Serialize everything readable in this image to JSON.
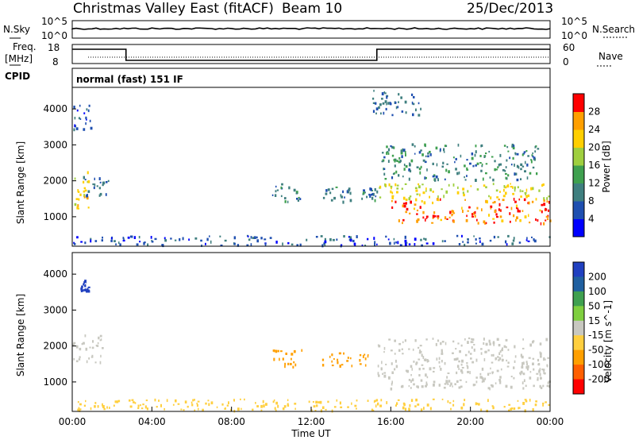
{
  "header": {
    "station": "Christmas Valley East (fitACF)",
    "beam": "Beam 10",
    "date": "25/Dec/2013"
  },
  "aux": {
    "nsky_label": "N.Sky",
    "nsearch_label": "N.Search",
    "nsky_ticks": [
      "10^5",
      "10^0"
    ],
    "nsearch_ticks": [
      "10^5",
      "10^0"
    ],
    "freq_label": "Freq.",
    "freq_unit": "[MHz]",
    "freq_ticks": [
      "18",
      "8"
    ],
    "nave_label": "Nave",
    "nave_ticks": [
      "60",
      "0"
    ],
    "cpid_label": "CPID",
    "cpid_value": "normal (fast) 151 IF"
  },
  "chart_data": [
    {
      "type": "heatmap",
      "name": "power",
      "ylabel": "Slant Range [km]",
      "xlabel": "",
      "xlim": [
        "00:00",
        "24:00"
      ],
      "ylim": [
        180,
        4600
      ],
      "yticks": [
        1000,
        2000,
        3000,
        4000
      ],
      "colorbar": {
        "label": "Power [dB]",
        "ticks": [
          4,
          8,
          12,
          16,
          20,
          24,
          28
        ],
        "range": [
          0,
          32
        ],
        "colors": [
          "#0000ff",
          "#1f4fb0",
          "#3f7f7f",
          "#3fa04f",
          "#9fcf3f",
          "#ffcf00",
          "#ff9f00",
          "#ff0000"
        ]
      },
      "regions": [
        {
          "t0": 0.0,
          "t1": 0.8,
          "r0": 1200,
          "r1": 2300,
          "level": 22
        },
        {
          "t0": 0.4,
          "t1": 1.8,
          "r0": 1500,
          "r1": 2100,
          "level": 8
        },
        {
          "t0": 0.0,
          "t1": 1.0,
          "r0": 3400,
          "r1": 4100,
          "level": 7
        },
        {
          "t0": 10.0,
          "t1": 11.5,
          "r0": 1400,
          "r1": 1900,
          "level": 9
        },
        {
          "t0": 12.5,
          "t1": 14.0,
          "r0": 1400,
          "r1": 1800,
          "level": 10
        },
        {
          "t0": 14.5,
          "t1": 15.3,
          "r0": 1400,
          "r1": 1800,
          "level": 9
        },
        {
          "t0": 15.5,
          "t1": 23.5,
          "r0": 2000,
          "r1": 3000,
          "level": 11
        },
        {
          "t0": 15.0,
          "t1": 17.5,
          "r0": 3800,
          "r1": 4500,
          "level": 8
        },
        {
          "t0": 15.3,
          "t1": 24.0,
          "r0": 1500,
          "r1": 1900,
          "level": 20
        },
        {
          "t0": 16.0,
          "t1": 24.0,
          "r0": 800,
          "r1": 1500,
          "level": 27
        },
        {
          "t0": 0.0,
          "t1": 24.0,
          "r0": 180,
          "r1": 450,
          "level": 6
        }
      ]
    },
    {
      "type": "heatmap",
      "name": "velocity",
      "ylabel": "Slant Range [km]",
      "xlabel": "Time UT",
      "xlim": [
        "00:00",
        "24:00"
      ],
      "ylim": [
        180,
        4600
      ],
      "yticks": [
        1000,
        2000,
        3000,
        4000
      ],
      "xticks": [
        "00:00",
        "04:00",
        "08:00",
        "12:00",
        "16:00",
        "20:00",
        "00:00"
      ],
      "colorbar": {
        "label": "Velocity [m s^-1]",
        "ticks": [
          200,
          100,
          50,
          15,
          -15,
          -50,
          -100,
          -200
        ],
        "colors": [
          "#2040c0",
          "#2060a0",
          "#3fa050",
          "#7fcf3f",
          "#c8c8c0",
          "#ffcf3f",
          "#ff9f00",
          "#ff5f00",
          "#ff0000"
        ]
      },
      "regions": [
        {
          "t0": 0.0,
          "t1": 1.5,
          "r0": 1500,
          "r1": 2300,
          "level": 0
        },
        {
          "t0": 0.4,
          "t1": 0.8,
          "r0": 3500,
          "r1": 3800,
          "level": 200
        },
        {
          "t0": 10.0,
          "t1": 11.5,
          "r0": 1400,
          "r1": 1900,
          "level": -60
        },
        {
          "t0": 12.5,
          "t1": 15.2,
          "r0": 1400,
          "r1": 1800,
          "level": -60
        },
        {
          "t0": 15.3,
          "t1": 24.0,
          "r0": 800,
          "r1": 2200,
          "level": 0
        },
        {
          "t0": 0.0,
          "t1": 24.0,
          "r0": 180,
          "r1": 500,
          "level": -40
        }
      ]
    }
  ]
}
